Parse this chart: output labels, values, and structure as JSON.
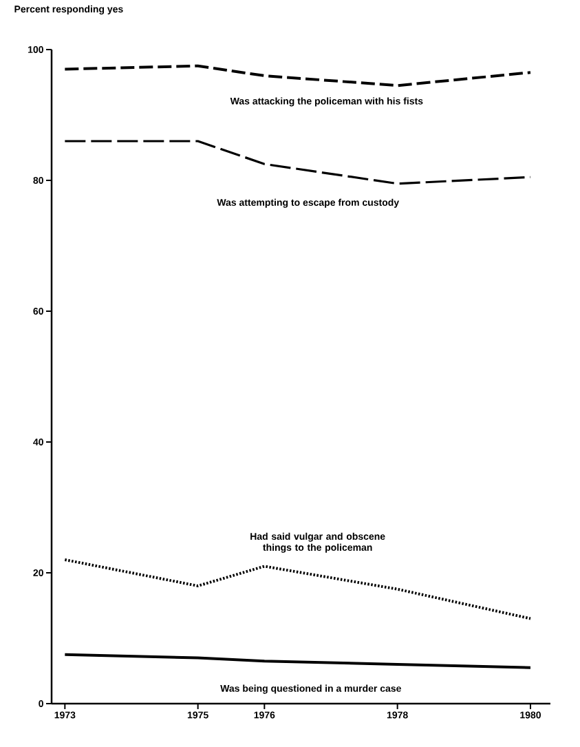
{
  "chart_data": {
    "type": "line",
    "ylabel": "Percent responding yes",
    "x": [
      1973,
      1975,
      1976,
      1978,
      1980
    ],
    "xlim": [
      1972.8,
      1980.3
    ],
    "ylim": [
      0,
      100
    ],
    "xticks": [
      1973,
      1975,
      1976,
      1978,
      1980
    ],
    "yticks": [
      0,
      20,
      40,
      60,
      80,
      100
    ],
    "grid": false,
    "marker": "none",
    "series": [
      {
        "name": "Was attacking the policeman with his fists",
        "color": "#000000",
        "line_style": "dashed",
        "values": [
          97,
          97.5,
          96,
          94.5,
          96.5
        ]
      },
      {
        "name": "Was attempting to escape from custody",
        "color": "#000000",
        "line_style": "dashed",
        "values": [
          86,
          86,
          82.5,
          79.5,
          80.5
        ]
      },
      {
        "name": "Had said vulgar and obscene things to the policeman",
        "color": "#000000",
        "line_style": "dotted",
        "values": [
          22,
          18,
          21,
          17.5,
          13
        ]
      },
      {
        "name": "Was being questioned in a murder case",
        "color": "#000000",
        "line_style": "solid",
        "values": [
          7.5,
          7,
          6.5,
          6,
          5.5
        ]
      }
    ]
  }
}
